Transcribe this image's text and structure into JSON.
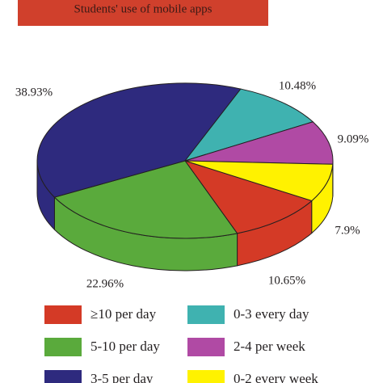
{
  "chart_data": {
    "type": "pie",
    "title": "Students' use of mobile apps",
    "categories": [
      "≥10 per day",
      "5-10 per day",
      "3-5 per day",
      "0-3 every day",
      "2-4 per week",
      "0-2 every week"
    ],
    "values": [
      10.65,
      22.96,
      38.93,
      10.48,
      9.09,
      7.9
    ],
    "value_labels": [
      "10.65%",
      "22.96%",
      "38.93%",
      "10.48%",
      "9.09%",
      "7.9%"
    ],
    "colors": [
      "#d43a26",
      "#5aaa3c",
      "#2e2a7e",
      "#3fb2b0",
      "#b04aa4",
      "#fff200"
    ]
  }
}
